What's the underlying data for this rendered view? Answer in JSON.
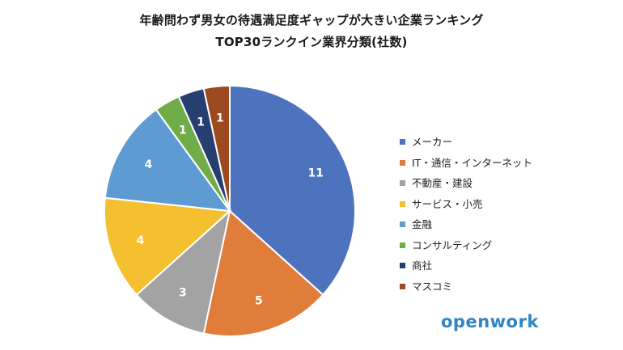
{
  "chart_data": {
    "type": "pie",
    "title": "年齢問わず男女の待遇満足度ギャップが大きい企業ランキング",
    "subtitle": "TOP30ランクイン業界分類(社数)",
    "categories": [
      "メーカー",
      "IT・通信・インターネット",
      "不動産・建設",
      "サービス・小売",
      "金融",
      "コンサルティング",
      "商社",
      "マスコミ"
    ],
    "values": [
      11,
      5,
      3,
      4,
      4,
      1,
      1,
      1
    ],
    "colors": [
      "#4e73be",
      "#e07d3a",
      "#a3a3a3",
      "#f5c02f",
      "#5e9bd3",
      "#70ac47",
      "#263e70",
      "#9c4a1f"
    ],
    "label_colors": [
      "#ffffff",
      "#ffffff",
      "#ffffff",
      "#ffffff",
      "#ffffff",
      "#ffffff",
      "#ffffff",
      "#ffffff"
    ],
    "legend_position": "right"
  },
  "brand": {
    "logo_text": "openwork"
  }
}
